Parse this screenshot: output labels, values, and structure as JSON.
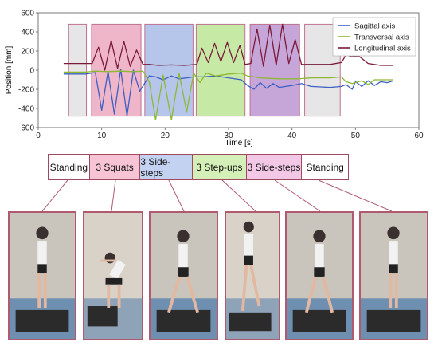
{
  "chart_data": {
    "type": "line",
    "xlabel": "Time [s]",
    "ylabel": "Position [mm]",
    "xlim": [
      0,
      60
    ],
    "ylim": [
      -600,
      600
    ],
    "xticks": [
      0,
      10,
      20,
      30,
      40,
      50,
      60
    ],
    "yticks": [
      -600,
      -400,
      -200,
      0,
      200,
      400,
      600
    ],
    "grid": false,
    "legend": "top-right",
    "phase_bands": [
      {
        "start": 4.8,
        "end": 7.6,
        "color": "#e6e6e6"
      },
      {
        "start": 8.4,
        "end": 16.2,
        "color": "#eeb6c8"
      },
      {
        "start": 16.8,
        "end": 24.4,
        "color": "#b6c6ea"
      },
      {
        "start": 24.9,
        "end": 32.6,
        "color": "#c6eaa6"
      },
      {
        "start": 33.4,
        "end": 41.2,
        "color": "#c6a6d8"
      },
      {
        "start": 42.0,
        "end": 47.6,
        "color": "#e6e6e6"
      }
    ],
    "series": [
      {
        "name": "Sagittal axis",
        "color": "#3d5fc4",
        "x": [
          4,
          7.5,
          9,
          10,
          11,
          12,
          13,
          14,
          15,
          16,
          17.5,
          18.5,
          19.7,
          21,
          22.2,
          23.4,
          24.5,
          26,
          28,
          30,
          32,
          33,
          34,
          35,
          36,
          37,
          38,
          39,
          40,
          41.5,
          43,
          46,
          47.8,
          48.5,
          49.5,
          50,
          51,
          52,
          53,
          54,
          55,
          56
        ],
        "y": [
          -40,
          -40,
          -25,
          -420,
          -10,
          -460,
          10,
          -480,
          0,
          -220,
          -60,
          -70,
          -100,
          -60,
          -90,
          -80,
          -70,
          -70,
          -60,
          -80,
          -100,
          -160,
          -200,
          -130,
          -190,
          -140,
          -180,
          -170,
          -160,
          -140,
          -170,
          -180,
          -170,
          -150,
          -200,
          -120,
          -170,
          -110,
          -160,
          -120,
          -130,
          -110
        ]
      },
      {
        "name": "Transversal axis",
        "color": "#8db832",
        "x": [
          4,
          7.5,
          9,
          11,
          13,
          15,
          16.5,
          17.5,
          18.5,
          19.7,
          21,
          22.2,
          23.4,
          24.5,
          25.5,
          26.5,
          28,
          30,
          32,
          33,
          35,
          38,
          41,
          43,
          46,
          47.8,
          48.5,
          49.5,
          51,
          52,
          53,
          54,
          56
        ],
        "y": [
          -20,
          -20,
          -10,
          -15,
          -10,
          -15,
          -10,
          -120,
          -520,
          -50,
          -520,
          -30,
          -440,
          -30,
          -130,
          -30,
          -60,
          -40,
          -30,
          -60,
          -80,
          -90,
          -90,
          -80,
          -80,
          -70,
          -120,
          -140,
          -110,
          -150,
          -100,
          -100,
          -100
        ]
      },
      {
        "name": "Longitudinal axis",
        "color": "#7a1a38",
        "x": [
          4,
          7.5,
          8.5,
          9.5,
          10.5,
          11.5,
          12.5,
          13.5,
          14.5,
          15.5,
          16.5,
          17.5,
          19,
          21,
          23,
          25,
          25.8,
          26.8,
          27.8,
          28.8,
          29.8,
          30.8,
          31.8,
          32.6,
          33.5,
          34.5,
          35.5,
          36.5,
          37.5,
          38.5,
          39.5,
          40.5,
          41.5,
          43,
          46,
          47.8,
          48.5,
          49.5,
          50.5,
          52,
          54,
          56
        ],
        "y": [
          70,
          70,
          70,
          240,
          0,
          310,
          20,
          300,
          40,
          210,
          60,
          60,
          50,
          55,
          50,
          60,
          230,
          80,
          280,
          90,
          290,
          80,
          260,
          60,
          70,
          430,
          40,
          470,
          50,
          480,
          70,
          320,
          60,
          60,
          60,
          80,
          160,
          140,
          150,
          70,
          50,
          50
        ]
      }
    ]
  },
  "phases": [
    {
      "label": "Standing",
      "fill": "#ffffff"
    },
    {
      "label": "3 Squats",
      "fill": "#f6c4d4"
    },
    {
      "label": "3 Side-steps",
      "fill": "#c4d2f2"
    },
    {
      "label": "3 Step-ups",
      "fill": "#d4f0b8"
    },
    {
      "label": "3 Side-steps",
      "fill": "#f2c8e6"
    },
    {
      "label": "Standing",
      "fill": "#ffffff"
    }
  ]
}
